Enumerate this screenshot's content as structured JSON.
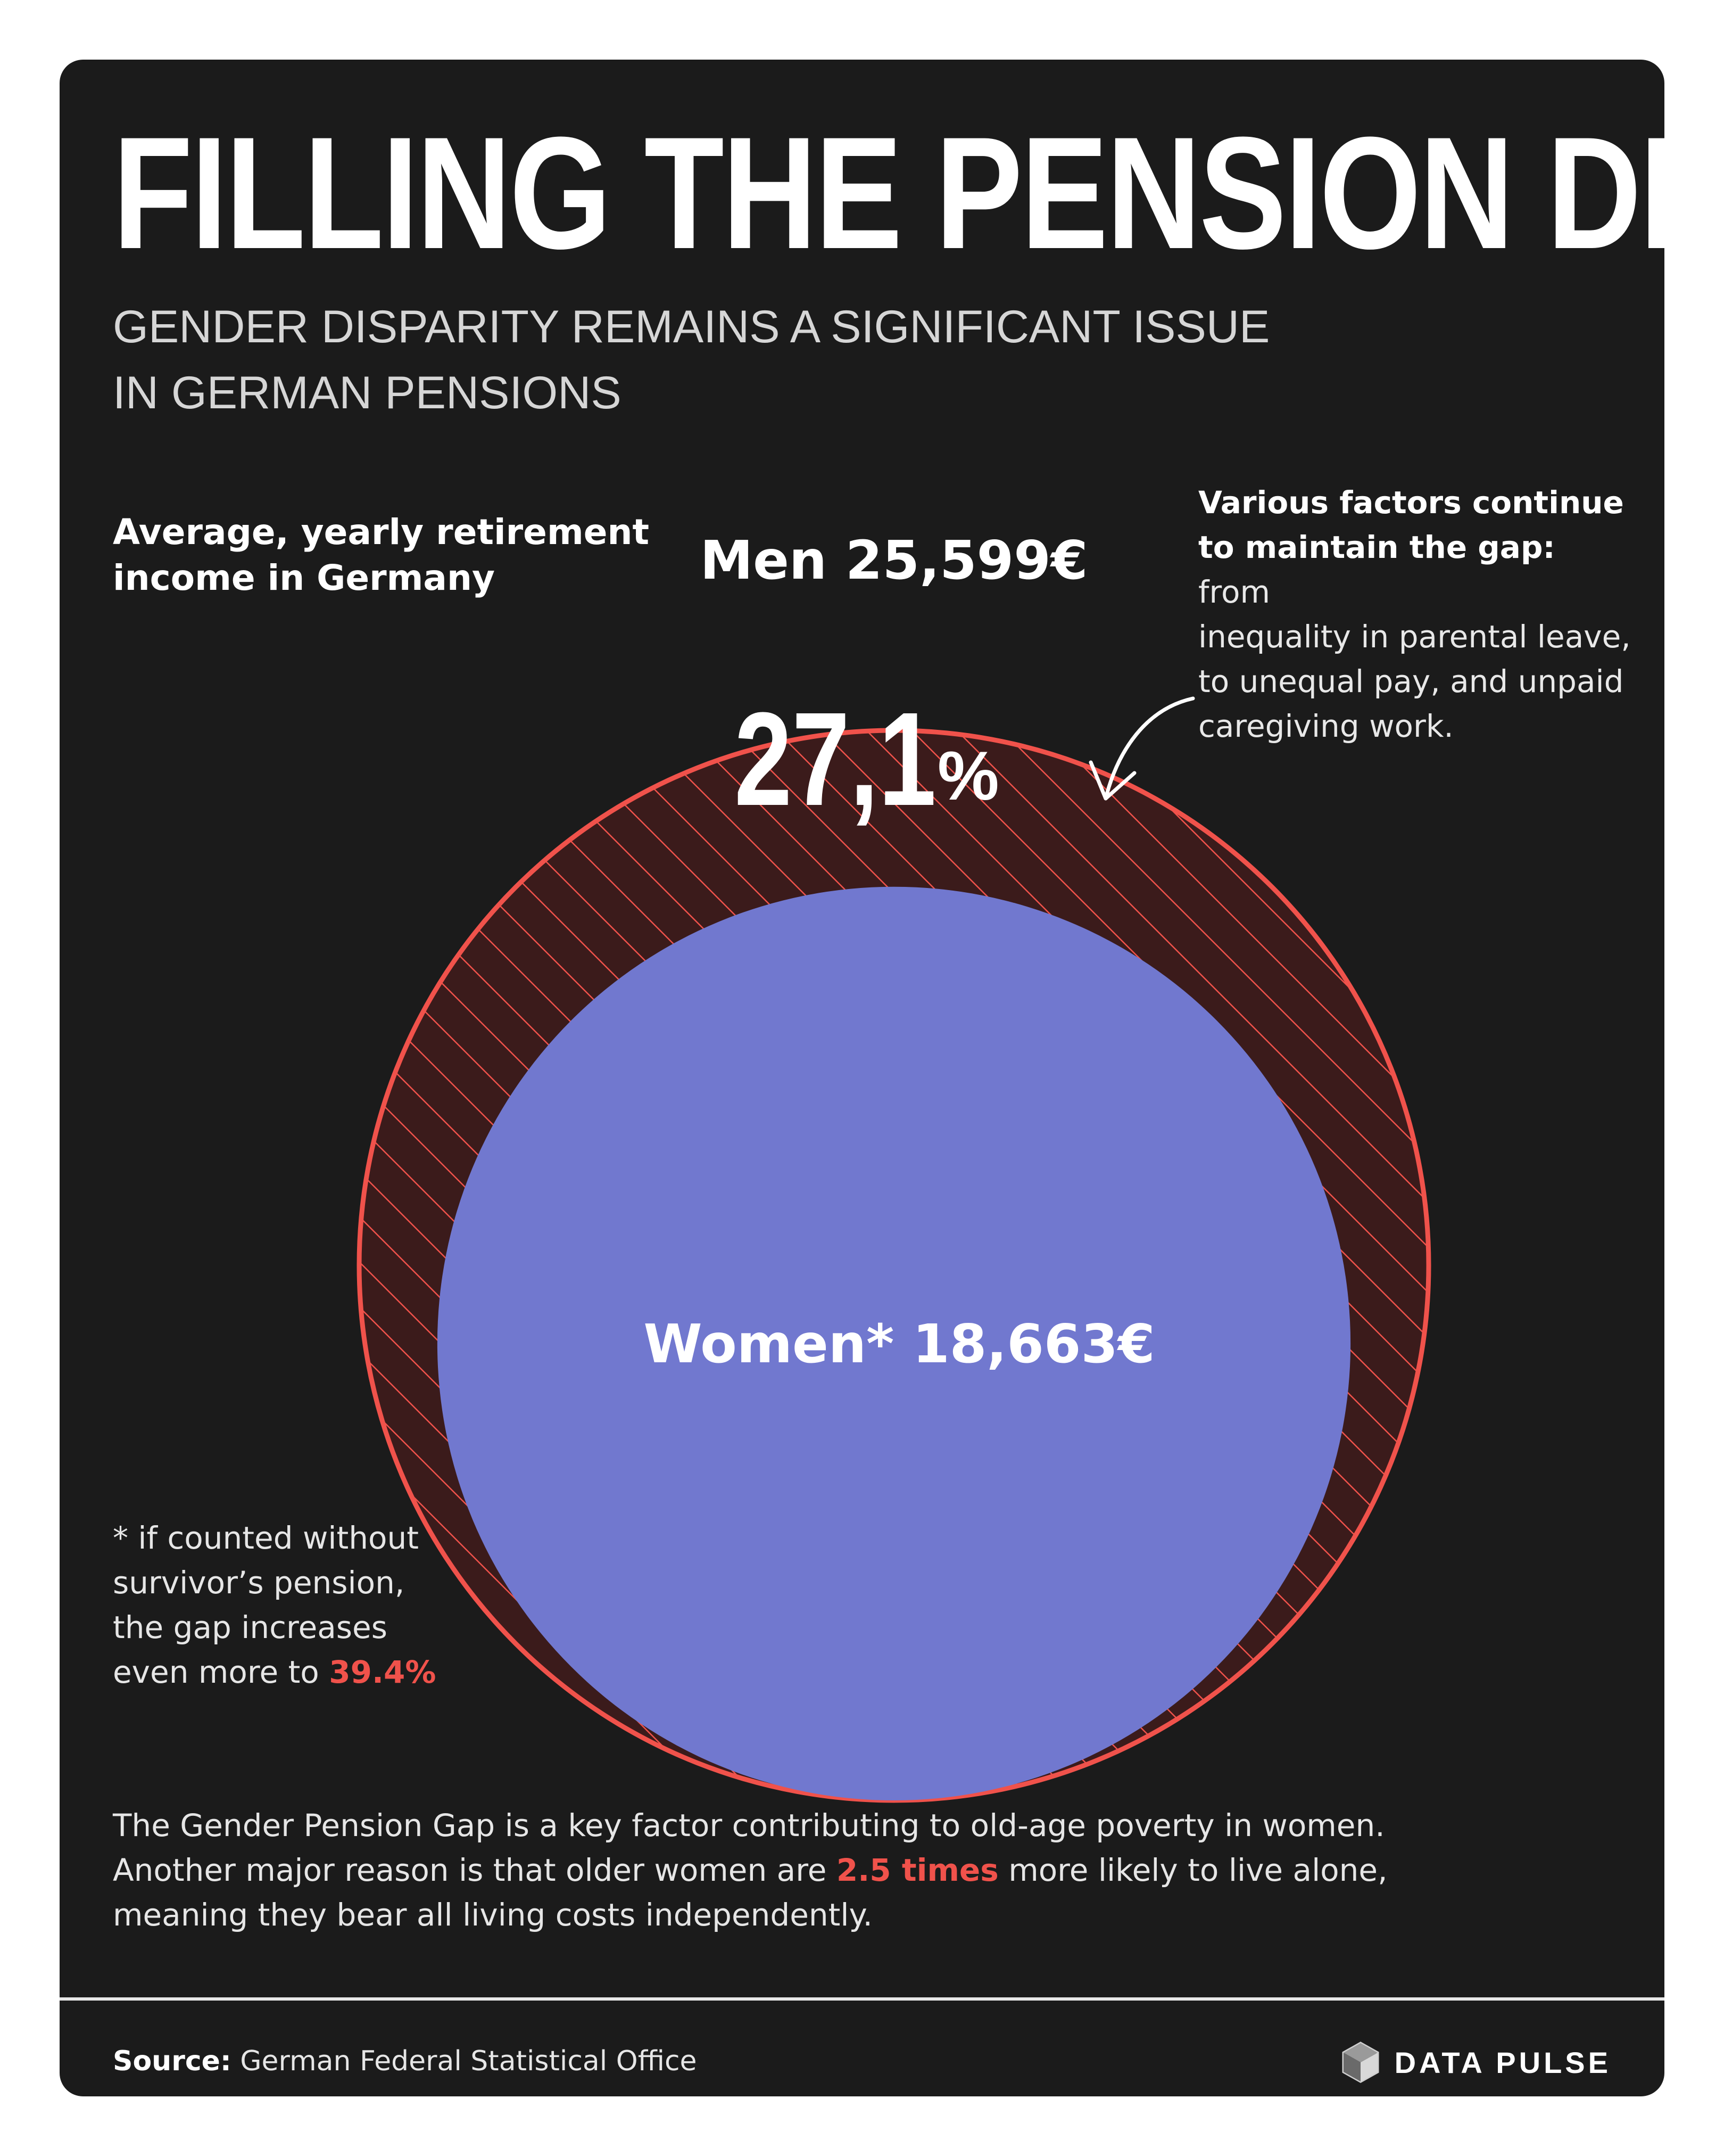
{
  "header": {
    "title": "FILLING THE PENSION DIVIDE",
    "subtitle_line1": "GENDER DISPARITY REMAINS A SIGNIFICANT ISSUE",
    "subtitle_line2": "IN GERMAN PENSIONS"
  },
  "chart_label": {
    "line1": "Average, yearly retirement",
    "line2": "income in Germany"
  },
  "annotation": {
    "bold_line1": "Various factors continue",
    "bold_line2": "to maintain the gap:",
    "rest_line2": " from",
    "line3": "inequality in parental leave,",
    "line4": "to unequal pay, and unpaid",
    "line5": "caregiving work."
  },
  "chart_data": {
    "type": "proportional_circles",
    "series": [
      {
        "name": "Men",
        "label": "Men  25,599€",
        "value": 25599,
        "color": "#f0524b",
        "style": "hatched-ring"
      },
      {
        "name": "Women*",
        "label": "Women* 18,663€",
        "value": 18663,
        "color": "#7178cf",
        "style": "filled"
      }
    ],
    "gap": {
      "number": "27,1",
      "unit": "%",
      "value": 27.1
    }
  },
  "footnote": {
    "line1": "* if counted without",
    "line2": "survivor’s pension,",
    "line3": "the gap increases",
    "line4_text": "even more to ",
    "line4_value": "39.4%"
  },
  "body": {
    "line1": "The Gender Pension Gap is a key factor contributing to old-age poverty in women.",
    "line2_before": "Another major reason is that older women are ",
    "line2_highlight": "2.5 times",
    "line2_after": " more likely to live alone,",
    "line3": "meaning they bear all living costs independently."
  },
  "footer": {
    "source_label": "Source:",
    "source_text": " German Federal Statistical Office",
    "brand": "DATA PULSE"
  },
  "colors": {
    "background": "#1b1b1b",
    "accent": "#f0524b",
    "women": "#7178cf",
    "text": "#ffffff"
  }
}
